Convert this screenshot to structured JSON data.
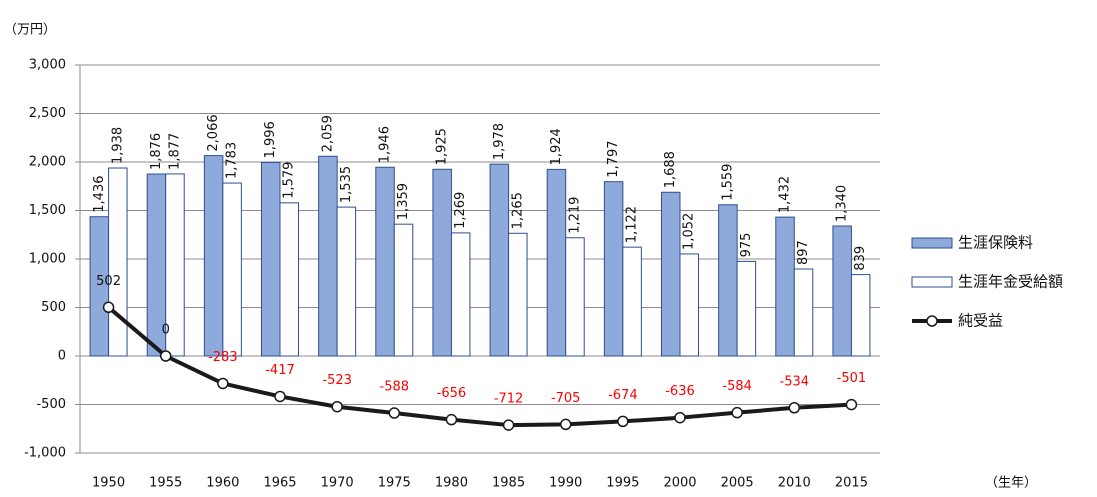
{
  "chart_data": {
    "type": "bar",
    "y_unit": "（万円）",
    "x_unit": "（生年）",
    "categories": [
      "1950",
      "1955",
      "1960",
      "1965",
      "1970",
      "1975",
      "1980",
      "1985",
      "1990",
      "1995",
      "2000",
      "2005",
      "2010",
      "2015"
    ],
    "series": [
      {
        "name": "生涯保険料",
        "type": "bar",
        "color": "#8eaadb",
        "stroke": "#2f4f8f",
        "values": [
          1436,
          1876,
          2066,
          1996,
          2059,
          1946,
          1925,
          1978,
          1924,
          1797,
          1688,
          1559,
          1432,
          1340
        ],
        "value_labels": [
          "1,436",
          "1,876",
          "2,066",
          "1,996",
          "2,059",
          "1,946",
          "1,925",
          "1,978",
          "1,924",
          "1,797",
          "1,688",
          "1,559",
          "1,432",
          "1,340"
        ]
      },
      {
        "name": "生涯年金受給額",
        "type": "bar",
        "color": "#ffffff",
        "stroke": "#2f4f8f",
        "values": [
          1938,
          1877,
          1783,
          1579,
          1535,
          1359,
          1269,
          1265,
          1219,
          1122,
          1052,
          975,
          897,
          839
        ],
        "value_labels": [
          "1,938",
          "1,877",
          "1,783",
          "1,579",
          "1,535",
          "1,359",
          "1,269",
          "1,265",
          "1,219",
          "1,122",
          "1,052",
          "975",
          "897",
          "839"
        ]
      },
      {
        "name": "純受益",
        "type": "line",
        "color": "#1a1a1a",
        "negative_label_color": "#ff0000",
        "values": [
          502,
          0,
          -283,
          -417,
          -523,
          -588,
          -656,
          -712,
          -705,
          -674,
          -636,
          -584,
          -534,
          -501
        ]
      }
    ],
    "ylim": [
      -1000,
      3000
    ],
    "yticks": [
      {
        "value": -1000,
        "label": "-1,000"
      },
      -500,
      0,
      500,
      {
        "value": 1000,
        "label": "1,000"
      },
      {
        "value": 1500,
        "label": "1,500"
      },
      {
        "value": 2000,
        "label": "2,000"
      },
      {
        "value": 2500,
        "label": "2,500"
      },
      {
        "value": 3000,
        "label": "3,000"
      }
    ],
    "grid": true,
    "legend": "right"
  }
}
